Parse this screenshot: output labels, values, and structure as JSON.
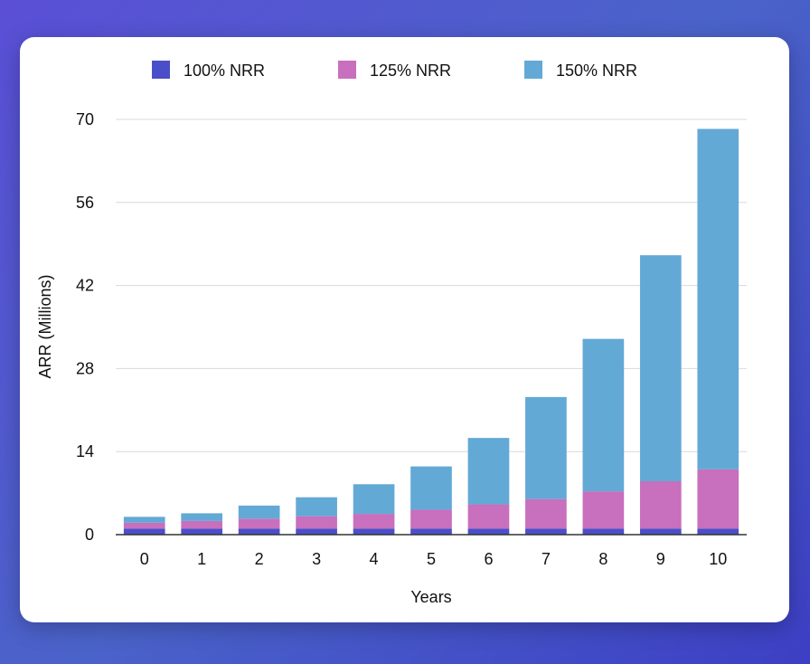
{
  "chart_data": {
    "type": "bar",
    "stacked": true,
    "title": "",
    "xlabel": "Years",
    "ylabel": "ARR (Millions)",
    "ylim": [
      0,
      70
    ],
    "yticks": [
      0,
      14,
      28,
      42,
      56,
      70
    ],
    "categories": [
      "0",
      "1",
      "2",
      "3",
      "4",
      "5",
      "6",
      "7",
      "8",
      "9",
      "10"
    ],
    "legend_position": "top",
    "grid": true,
    "series": [
      {
        "name": "100% NRR",
        "color": "#4a4fc9",
        "values": [
          1,
          1,
          1,
          1,
          1,
          1,
          1,
          1,
          1,
          1,
          1
        ]
      },
      {
        "name": "125% NRR",
        "color": "#c86fbe",
        "values": [
          1,
          1.3,
          1.7,
          2.1,
          2.5,
          3.2,
          4.1,
          5,
          6.3,
          8,
          10
        ]
      },
      {
        "name": "150% NRR",
        "color": "#63a9d5",
        "values": [
          1,
          1.3,
          2.2,
          3.2,
          5,
          7.3,
          11.2,
          17.2,
          25.7,
          38.1,
          57.4
        ]
      }
    ]
  }
}
